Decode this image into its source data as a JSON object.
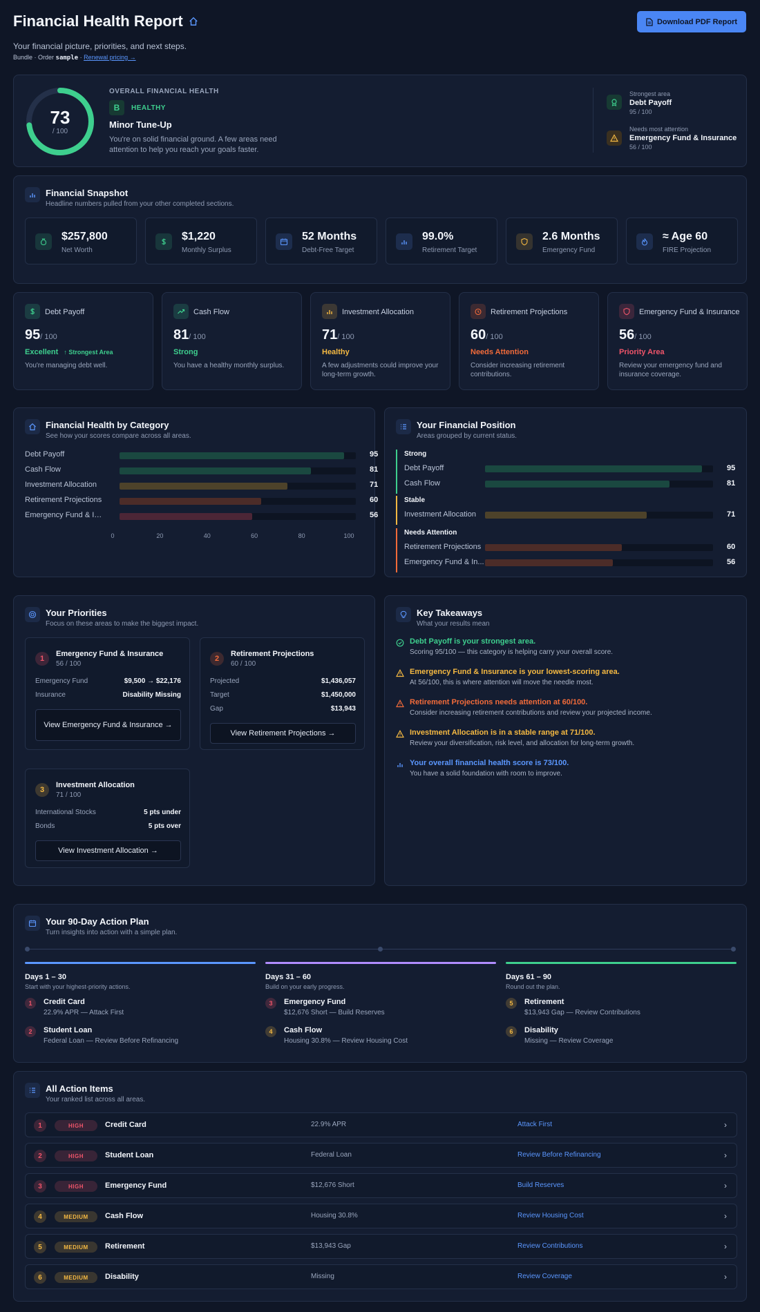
{
  "header": {
    "title": "Financial Health Report",
    "subtitle": "Your financial picture, priorities, and next steps.",
    "meta_prefix": "Bundle · Order",
    "order_code": "sample",
    "renewal_link": "Renewal pricing →",
    "download_label": "Download PDF Report"
  },
  "overview": {
    "score": "73",
    "score_of": "/ 100",
    "score_value": 73,
    "kicker": "OVERALL FINANCIAL HEALTH",
    "grade": "B",
    "status": "HEALTHY",
    "headline": "Minor Tune-Up",
    "description_line1": "You're on solid financial ground. A few areas need",
    "description_line2": "attention to help you reach your goals faster.",
    "strongest_label": "Strongest area",
    "strongest_name": "Debt Payoff",
    "strongest_score": "95 / 100",
    "attention_label": "Needs most attention",
    "attention_name": "Emergency Fund & Insurance",
    "attention_score": "56 / 100"
  },
  "snapshot": {
    "title": "Financial Snapshot",
    "subtitle": "Headline numbers pulled from your other completed sections.",
    "items": [
      {
        "value": "$257,800",
        "label": "Net Worth",
        "icon": "money-bag-icon",
        "color": "#3ecf8e"
      },
      {
        "value": "$1,220",
        "label": "Monthly Surplus",
        "icon": "dollar-icon",
        "color": "#3ecf8e"
      },
      {
        "value": "52 Months",
        "label": "Debt-Free Target",
        "icon": "calendar-icon",
        "color": "#5b97ff"
      },
      {
        "value": "99.0%",
        "label": "Retirement Target",
        "icon": "bar-chart-icon",
        "color": "#5b97ff"
      },
      {
        "value": "2.6 Months",
        "label": "Emergency Fund",
        "icon": "shield-icon",
        "color": "#f5b942"
      },
      {
        "value": "≈ Age 60",
        "label": "FIRE Projection",
        "icon": "flame-icon",
        "color": "#5b97ff"
      }
    ]
  },
  "categories": [
    {
      "name": "Debt Payoff",
      "score": "95",
      "of": "/ 100",
      "status": "Excellent",
      "badge": "↑ Strongest Area",
      "desc": "You're managing debt well.",
      "color": "#3ecf8e"
    },
    {
      "name": "Cash Flow",
      "score": "81",
      "of": "/ 100",
      "status": "Strong",
      "badge": "",
      "desc": "You have a healthy monthly surplus.",
      "color": "#3ecf8e"
    },
    {
      "name": "Investment Allocation",
      "score": "71",
      "of": "/ 100",
      "status": "Healthy",
      "badge": "",
      "desc": "A few adjustments could improve your long-term growth.",
      "color": "#f5b942"
    },
    {
      "name": "Retirement Projections",
      "score": "60",
      "of": "/ 100",
      "status": "Needs Attention",
      "badge": "",
      "desc": "Consider increasing retirement contributions.",
      "color": "#f26b3a"
    },
    {
      "name": "Emergency Fund & Insurance",
      "score": "56",
      "of": "/ 100",
      "status": "Priority Area",
      "badge": "",
      "desc": "Review your emergency fund and insurance coverage.",
      "color": "#f0556a"
    }
  ],
  "by_category": {
    "title": "Financial Health by Category",
    "subtitle": "See how your scores compare across all areas.",
    "ticks": [
      "0",
      "20",
      "40",
      "60",
      "80",
      "100"
    ]
  },
  "chart_data": {
    "type": "bar",
    "orientation": "horizontal",
    "categories": [
      "Debt Payoff",
      "Cash Flow",
      "Investment Allocation",
      "Retirement Projections",
      "Emergency Fund & In..."
    ],
    "values": [
      95,
      81,
      71,
      60,
      56
    ],
    "xlim": [
      0,
      100
    ],
    "title": "Financial Health by Category"
  },
  "position": {
    "title": "Your Financial Position",
    "subtitle": "Areas grouped by current status.",
    "groups": [
      {
        "label": "Strong",
        "color": "#3ecf8e",
        "items": [
          {
            "name": "Debt Payoff",
            "value": "95"
          },
          {
            "name": "Cash Flow",
            "value": "81"
          }
        ]
      },
      {
        "label": "Stable",
        "color": "#f5b942",
        "items": [
          {
            "name": "Investment Allocation",
            "value": "71"
          }
        ]
      },
      {
        "label": "Needs Attention",
        "color": "#f26b3a",
        "items": [
          {
            "name": "Retirement Projections",
            "value": "60"
          },
          {
            "name": "Emergency Fund & In...",
            "value": "56"
          }
        ]
      }
    ]
  },
  "priorities": {
    "title": "Your Priorities",
    "subtitle": "Focus on these areas to make the biggest impact.",
    "items": [
      {
        "num": "1",
        "title": "Emergency Fund & Insurance",
        "score": "56 / 100",
        "rows": [
          {
            "k": "Emergency Fund",
            "v": "$9,500 → $22,176"
          },
          {
            "k": "Insurance",
            "v": "Disability Missing"
          }
        ],
        "button": "View Emergency Fund & Insurance →",
        "color": "#f0556a"
      },
      {
        "num": "2",
        "title": "Retirement Projections",
        "score": "60 / 100",
        "rows": [
          {
            "k": "Projected",
            "v": "$1,436,057"
          },
          {
            "k": "Target",
            "v": "$1,450,000"
          },
          {
            "k": "Gap",
            "v": "$13,943"
          }
        ],
        "button": "View Retirement Projections →",
        "color": "#f26b3a"
      },
      {
        "num": "3",
        "title": "Investment Allocation",
        "score": "71 / 100",
        "rows": [
          {
            "k": "International Stocks",
            "v": "5 pts under"
          },
          {
            "k": "Bonds",
            "v": "5 pts over"
          }
        ],
        "button": "View Investment Allocation →",
        "color": "#f5b942"
      }
    ]
  },
  "takeaways": {
    "title": "Key Takeaways",
    "subtitle": "What your results mean",
    "items": [
      {
        "head": "Debt Payoff is your strongest area.",
        "body": "Scoring 95/100 — this category is helping carry your overall score.",
        "color": "#3ecf8e",
        "icon": "check-circle-icon"
      },
      {
        "head": "Emergency Fund & Insurance is your lowest-scoring area.",
        "body": "At 56/100, this is where attention will move the needle most.",
        "color": "#f5b942",
        "icon": "warning-icon"
      },
      {
        "head": "Retirement Projections needs attention at 60/100.",
        "body": "Consider increasing retirement contributions and review your projected income.",
        "color": "#f26b3a",
        "icon": "warning-icon"
      },
      {
        "head": "Investment Allocation is in a stable range at 71/100.",
        "body": "Review your diversification, risk level, and allocation for long-term growth.",
        "color": "#f5b942",
        "icon": "warning-icon"
      },
      {
        "head": "Your overall financial health score is 73/100.",
        "body": "You have a solid foundation with room to improve.",
        "color": "#5b97ff",
        "icon": "bar-chart-icon"
      }
    ]
  },
  "plan": {
    "title": "Your 90-Day Action Plan",
    "subtitle": "Turn insights into action with a simple plan.",
    "phases": [
      {
        "title": "Days 1 – 30",
        "sub": "Start with your highest-priority actions.",
        "color": "#5b97ff",
        "items": [
          {
            "n": "1",
            "a": "Credit Card",
            "b": "22.9% APR — Attack First",
            "color": "#f0556a"
          },
          {
            "n": "2",
            "a": "Student Loan",
            "b": "Federal Loan — Review Before Refinancing",
            "color": "#f0556a"
          }
        ]
      },
      {
        "title": "Days 31 – 60",
        "sub": "Build on your early progress.",
        "color": "#b18cff",
        "items": [
          {
            "n": "3",
            "a": "Emergency Fund",
            "b": "$12,676 Short — Build Reserves",
            "color": "#f0556a"
          },
          {
            "n": "4",
            "a": "Cash Flow",
            "b": "Housing 30.8% — Review Housing Cost",
            "color": "#f5b942"
          }
        ]
      },
      {
        "title": "Days 61 – 90",
        "sub": "Round out the plan.",
        "color": "#3ecf8e",
        "items": [
          {
            "n": "5",
            "a": "Retirement",
            "b": "$13,943 Gap — Review Contributions",
            "color": "#f5b942"
          },
          {
            "n": "6",
            "a": "Disability",
            "b": "Missing — Review Coverage",
            "color": "#f5b942"
          }
        ]
      }
    ]
  },
  "actions": {
    "title": "All Action Items",
    "subtitle": "Your ranked list across all areas.",
    "items": [
      {
        "n": "1",
        "priority": "HIGH",
        "title": "Credit Card",
        "detail": "22.9% APR",
        "action": "Attack First"
      },
      {
        "n": "2",
        "priority": "HIGH",
        "title": "Student Loan",
        "detail": "Federal Loan",
        "action": "Review Before Refinancing"
      },
      {
        "n": "3",
        "priority": "HIGH",
        "title": "Emergency Fund",
        "detail": "$12,676 Short",
        "action": "Build Reserves"
      },
      {
        "n": "4",
        "priority": "MEDIUM",
        "title": "Cash Flow",
        "detail": "Housing 30.8%",
        "action": "Review Housing Cost"
      },
      {
        "n": "5",
        "priority": "MEDIUM",
        "title": "Retirement",
        "detail": "$13,943 Gap",
        "action": "Review Contributions"
      },
      {
        "n": "6",
        "priority": "MEDIUM",
        "title": "Disability",
        "detail": "Missing",
        "action": "Review Coverage"
      }
    ]
  }
}
